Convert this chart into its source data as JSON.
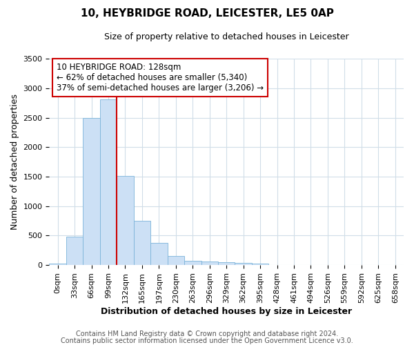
{
  "title1": "10, HEYBRIDGE ROAD, LEICESTER, LE5 0AP",
  "title2": "Size of property relative to detached houses in Leicester",
  "xlabel": "Distribution of detached houses by size in Leicester",
  "ylabel": "Number of detached properties",
  "footnote1": "Contains HM Land Registry data © Crown copyright and database right 2024.",
  "footnote2": "Contains public sector information licensed under the Open Government Licence v3.0.",
  "bin_labels": [
    "0sqm",
    "33sqm",
    "66sqm",
    "99sqm",
    "132sqm",
    "165sqm",
    "197sqm",
    "230sqm",
    "263sqm",
    "296sqm",
    "329sqm",
    "362sqm",
    "395sqm",
    "428sqm",
    "461sqm",
    "494sqm",
    "526sqm",
    "559sqm",
    "592sqm",
    "625sqm",
    "658sqm"
  ],
  "bar_values": [
    20,
    480,
    2500,
    2810,
    1510,
    750,
    380,
    150,
    70,
    55,
    50,
    40,
    20,
    5,
    3,
    2,
    1,
    1,
    0,
    0,
    0
  ],
  "bar_color": "#cce0f5",
  "bar_edge_color": "#7ab3d9",
  "vline_x": 4,
  "vline_color": "#cc0000",
  "annotation_text1": "10 HEYBRIDGE ROAD: 128sqm",
  "annotation_text2": "← 62% of detached houses are smaller (5,340)",
  "annotation_text3": "37% of semi-detached houses are larger (3,206) →",
  "annotation_box_color": "#ffffff",
  "annotation_border_color": "#cc0000",
  "ylim": [
    0,
    3500
  ],
  "yticks": [
    0,
    500,
    1000,
    1500,
    2000,
    2500,
    3000,
    3500
  ],
  "title1_fontsize": 11,
  "title2_fontsize": 9,
  "xlabel_fontsize": 9,
  "ylabel_fontsize": 9,
  "footnote_fontsize": 7,
  "tick_fontsize": 8
}
